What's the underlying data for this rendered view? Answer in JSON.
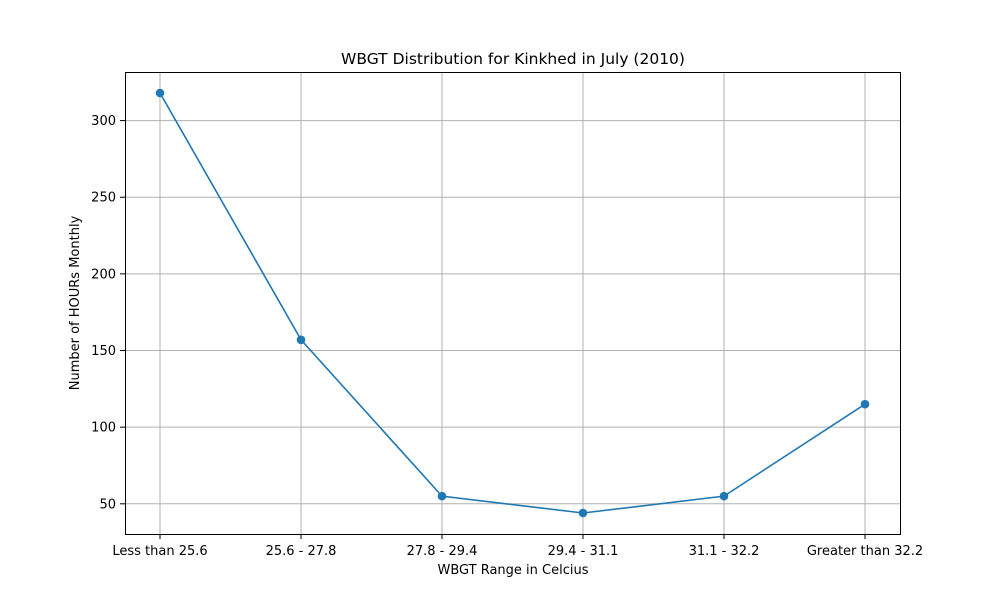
{
  "chart_data": {
    "type": "line",
    "title": "WBGT Distribution for Kinkhed in July (2010)",
    "xlabel": "WBGT Range in Celcius",
    "ylabel": "Number of HOURs Monthly",
    "categories": [
      "Less than 25.6",
      "25.6 - 27.8",
      "27.8 - 29.4",
      "29.4 - 31.1",
      "31.1 - 32.2",
      "Greater than 32.2"
    ],
    "series": [
      {
        "values": [
          318,
          157,
          55,
          44,
          55,
          115
        ]
      }
    ],
    "yticks": [
      50,
      100,
      150,
      200,
      250,
      300
    ],
    "ylim": [
      30.3,
      331.7
    ],
    "grid": true,
    "marker": "circle",
    "line_color": "#1f77b4"
  }
}
